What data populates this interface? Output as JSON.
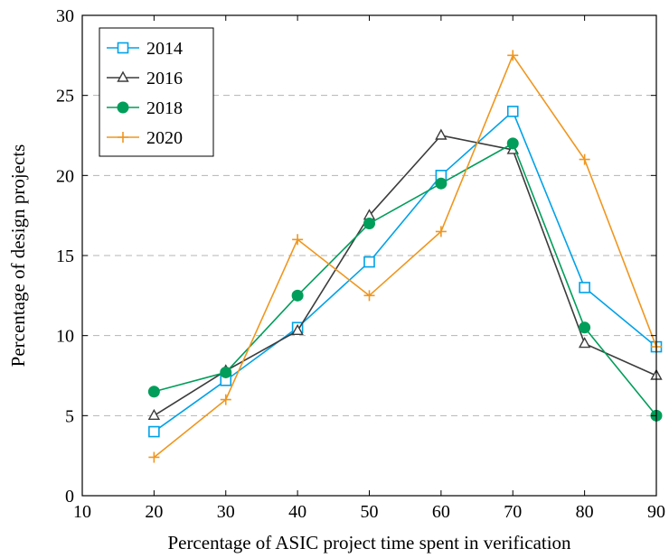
{
  "chart_data": {
    "type": "line",
    "title": "",
    "xlabel": "Percentage of ASIC project time spent in verification",
    "ylabel": "Percentage of design projects",
    "xlim": [
      10,
      90
    ],
    "ylim": [
      0,
      30
    ],
    "xticks": [
      10,
      20,
      30,
      40,
      50,
      60,
      70,
      80,
      90
    ],
    "yticks": [
      0,
      5,
      10,
      15,
      20,
      25,
      30
    ],
    "grid": "horizontal dashed",
    "legend_position": "top-left",
    "x": [
      20,
      30,
      40,
      50,
      60,
      70,
      80,
      90
    ],
    "series": [
      {
        "name": "2014",
        "color": "#00a2e8",
        "marker": "square-open",
        "values": [
          4.0,
          7.2,
          10.5,
          14.6,
          20.0,
          24.0,
          13.0,
          9.3
        ]
      },
      {
        "name": "2016",
        "color": "#3c3c3c",
        "marker": "triangle-open",
        "values": [
          5.0,
          7.8,
          10.3,
          17.5,
          22.5,
          21.6,
          9.5,
          7.5
        ]
      },
      {
        "name": "2018",
        "color": "#009e5a",
        "marker": "circle-filled",
        "values": [
          6.5,
          7.7,
          12.5,
          17.0,
          19.5,
          22.0,
          10.5,
          5.0
        ]
      },
      {
        "name": "2020",
        "color": "#f0961e",
        "marker": "plus",
        "values": [
          2.4,
          6.0,
          16.0,
          12.5,
          16.5,
          27.5,
          21.0,
          9.3
        ]
      }
    ]
  }
}
